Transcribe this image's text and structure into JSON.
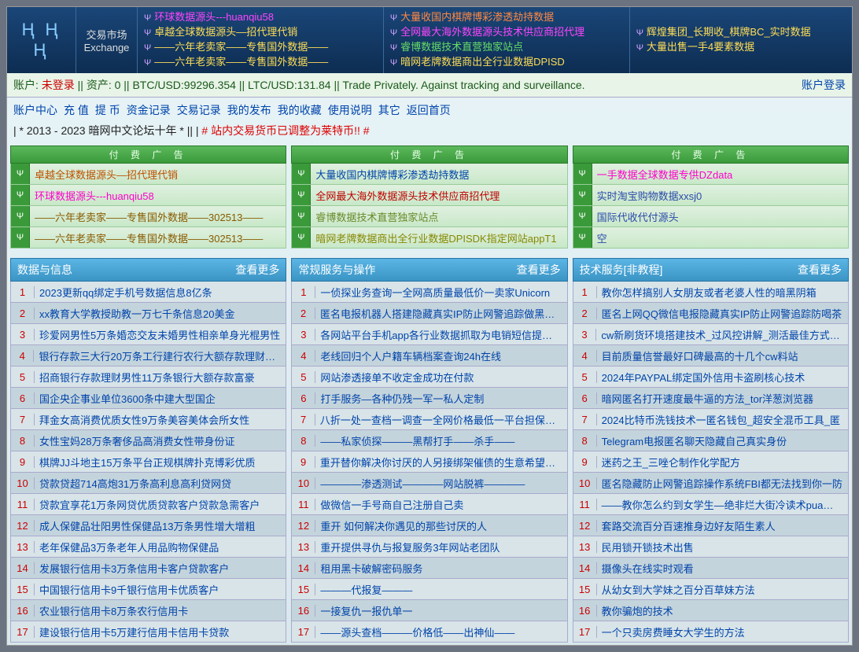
{
  "market": {
    "cn": "交易市场",
    "en": "Exchange"
  },
  "headerCols": [
    [
      {
        "c": "#ff44ff",
        "t": "环球数据源头---huanqiu58"
      },
      {
        "c": "#ffdd55",
        "t": "卓越全球数据源头—招代理代销"
      },
      {
        "c": "#ffdd55",
        "t": "——六年老卖家——专售国外数据——"
      },
      {
        "c": "#ffdd55",
        "t": "——六年老卖家——专售国外数据——"
      }
    ],
    [
      {
        "c": "#ff8844",
        "t": "大量收国内棋牌博彩渗透劫持数据"
      },
      {
        "c": "#ff44ff",
        "t": "全网最大海外数据源头技术供应商招代理"
      },
      {
        "c": "#66dd66",
        "t": "睿博数据技术直营独家站点"
      },
      {
        "c": "#ffdd55",
        "t": "暗网老牌数据商出全行业数据DPISD"
      }
    ],
    [
      {
        "c": "#ffdd55",
        "t": "辉煌集团_长期收_棋牌BC_实时数据"
      },
      {
        "c": "#ffdd55",
        "t": "大量出售一手4要素数据"
      }
    ]
  ],
  "status": {
    "prefix": "账户: ",
    "login": "未登录",
    "rest": "  || 资产: 0 || BTC/USD:99296.354 || LTC/USD:131.84 || Trade Privately. Against tracking and surveillance.",
    "loginBtn": "账户登录"
  },
  "nav": [
    "账户中心",
    "充 值",
    "提 币",
    "资金记录",
    "交易记录",
    "我的发布",
    "我的收藏",
    "使用说明",
    "其它",
    "返回首页"
  ],
  "notice": {
    "a": "| * 2013 - 2023 暗网中文论坛十年 * || | ",
    "b": "# 站内交易货币已调整为莱特币!! #"
  },
  "adHeader": "付 费 广 告",
  "ads": [
    [
      {
        "c": "#c05000",
        "t": "卓越全球数据源头—招代理代销"
      },
      {
        "c": "#ff00cc",
        "t": "环球数据源头---huanqiu58"
      },
      {
        "c": "#8a5a00",
        "t": "——六年老卖家——专售国外数据——302513——"
      },
      {
        "c": "#8a5a00",
        "t": "——六年老卖家——专售国外数据——302513——"
      }
    ],
    [
      {
        "c": "#0044aa",
        "t": "大量收国内棋牌博彩渗透劫持数据"
      },
      {
        "c": "#c00000",
        "t": "全网最大海外数据源头技术供应商招代理"
      },
      {
        "c": "#6a8a2a",
        "t": "睿博数据技术直营独家站点"
      },
      {
        "c": "#888800",
        "t": "暗网老牌数据商出全行业数据DPISDK指定网站appT1"
      }
    ],
    [
      {
        "c": "#ff00cc",
        "t": "一手数据全球数据专供DZdata"
      },
      {
        "c": "#2a4aaa",
        "t": "实时淘宝购物数据xxsj0"
      },
      {
        "c": "#2a4aaa",
        "t": "国际代收代付源头"
      },
      {
        "c": "#2a4aaa",
        "t": "空"
      }
    ]
  ],
  "cats": [
    {
      "title": "数据与信息",
      "more": "查看更多"
    },
    {
      "title": "常规服务与操作",
      "more": "查看更多"
    },
    {
      "title": "技术服务[非教程]",
      "more": "查看更多"
    }
  ],
  "lists": [
    [
      "2023更新qq绑定手机号数据信息8亿条",
      "xx教育大学教授助教一万七千条信息20美金",
      "珍爱网男性5万条婚恋交友未婚男性相亲单身光棍男性",
      "银行存款三大行20万条工行建行农行大额存款理财客户",
      "招商银行存款理财男性11万条银行大额存款富豪",
      "国企央企事业单位3600条中建大型国企",
      "拜金女高消费优质女性9万条美容美体会所女性",
      "女性宝妈28万条奢侈品高消费女性带身份证",
      "棋牌JJ斗地主15万条平台正规棋牌扑克博彩优质",
      "贷款贷超714高炮31万条高利息高利贷网贷",
      "贷款宜享花1万条网贷优质贷款客户贷款急需客户",
      "成人保健品壮阳男性保健品13万条男性增大增粗",
      "老年保健品3万条老年人用品购物保健品",
      "发展银行信用卡3万条信用卡客户贷款客户",
      "中国银行信用卡9千银行信用卡优质客户",
      "农业银行信用卡8万条农行信用卡",
      "建设银行信用卡5万建行信用卡信用卡贷款"
    ],
    [
      "一侦探业务查询一全网高质量最低价一卖家Unicorn",
      "匿名电报机器人搭建隐藏真实IP防止网警追踪做黑产必",
      "各网站平台手机app各行业数据抓取为电销短信提供一",
      "老线回归个人户籍车辆档案查询24h在线",
      "网站渗透接单不收定金成功在付款",
      "打手服务—各种仍残一军一私人定制",
      "八折一处一查档一调查一全网价格最低一平台担保交易",
      "——私家侦探———黑帮打手——杀手——",
      "重开替你解决你讨厌的人另接绑架催债的生意希望对拍",
      "————渗透测试————网站脱裤————",
      "做微信一手号商自己注册自己卖",
      "重开 如何解决你遇见的那些讨厌的人",
      "重开提供寻仇与报复服务3年网站老团队",
      "租用黑卡破解密码服务",
      "———代报复———",
      "一接复仇一报仇单一",
      "——源头查档———价格低——出神仙——"
    ],
    [
      "教你怎样搞别人女朋友或者老婆人性的暗黑阴箱",
      "匿名上网QQ微信电报隐藏真实IP防止网警追踪防喝茶",
      "cw新刷货环境搭建技术_过风控讲解_测活最佳方式_资",
      "目前质量信誉最好口碑最高的十几个cw料站",
      "2024年PAYPAL绑定国外信用卡盗刷核心技术",
      "暗网匿名打开速度最牛逼的方法_tor洋葱浏览器",
      "2024比特币洗钱技术一匿名钱包_超安全混币工具_匿",
      "Telegram电报匿名聊天隐藏自己真实身份",
      "迷药之王_三唑仑制作化学配方",
      "匿名隐藏防止网警追踪操作系统FBI都无法找到你一防",
      "——教你怎么约到女学生—绝非烂大街冷读术pua教程",
      "套路交流百分百速推身边好友陌生素人",
      "民用锁开锁技术出售",
      "摄像头在线实时观看",
      "从幼女到大学妹之百分百草妹方法",
      "教你骗炮的技术",
      "一个只卖房费睡女大学生的方法"
    ]
  ]
}
